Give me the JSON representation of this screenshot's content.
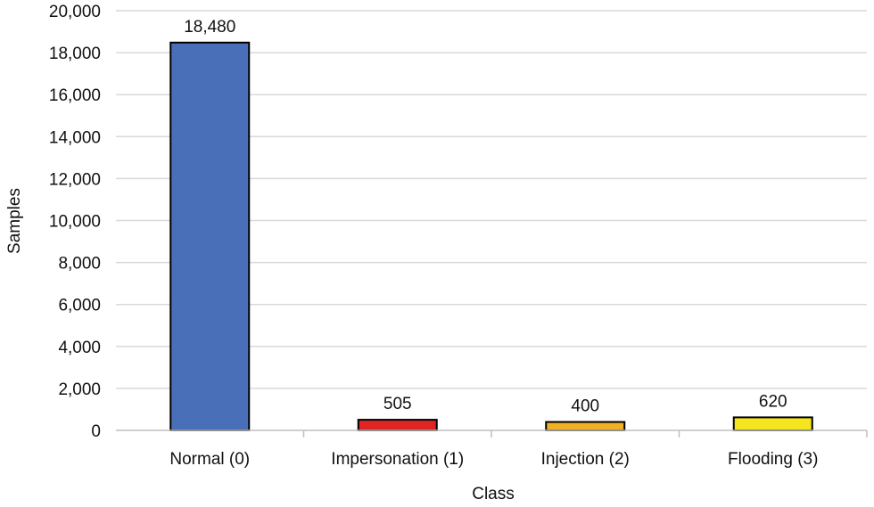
{
  "chart_data": {
    "type": "bar",
    "categories": [
      "Normal (0)",
      "Impersonation (1)",
      "Injection (2)",
      "Flooding (3)"
    ],
    "values": [
      18480,
      505,
      400,
      620
    ],
    "data_labels": [
      "18,480",
      "505",
      "400",
      "620"
    ],
    "colors": [
      "#4a6fb9",
      "#e02424",
      "#f0b021",
      "#f4e51f"
    ],
    "xlabel": "Class",
    "ylabel": "Samples",
    "ylim": [
      0,
      20000
    ],
    "yticks": [
      0,
      2000,
      4000,
      6000,
      8000,
      10000,
      12000,
      14000,
      16000,
      18000,
      20000
    ],
    "ytick_labels": [
      "0",
      "2,000",
      "4,000",
      "6,000",
      "8,000",
      "10,000",
      "12,000",
      "14,000",
      "16,000",
      "18,000",
      "20,000"
    ],
    "grid": true,
    "legend": "none",
    "gridline_color": "#d9d9d9",
    "axis_color": "#bfbfbf",
    "bar_outline_color": "#000000"
  }
}
